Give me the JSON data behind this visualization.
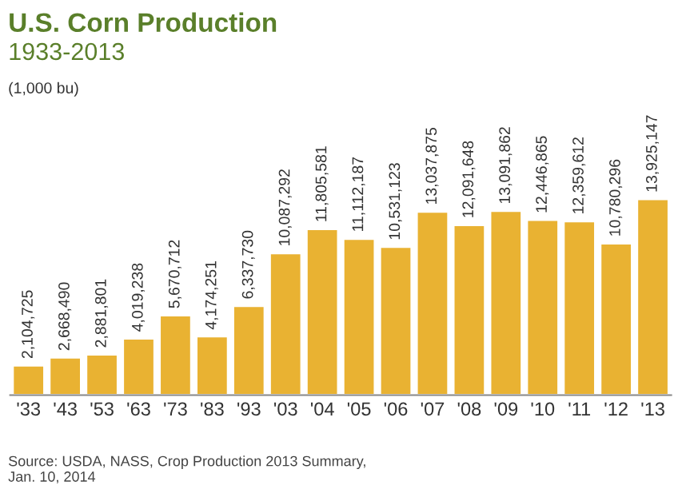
{
  "chart_data": {
    "type": "bar",
    "title": "U.S. Corn Production",
    "subtitle": "1933-2013",
    "categories": [
      "'33",
      "'43",
      "'53",
      "'63",
      "'73",
      "'83",
      "'93",
      "'03",
      "'04",
      "'05",
      "'06",
      "'07",
      "'08",
      "'09",
      "'10",
      "'11",
      "'12",
      "'13"
    ],
    "values": [
      2104725,
      2668490,
      2881801,
      4019238,
      5670712,
      4174251,
      6337730,
      10087292,
      11805581,
      11112187,
      10531123,
      13037875,
      12091648,
      13091862,
      12446865,
      12359612,
      10780296,
      13925147
    ],
    "value_labels": [
      "2,104,725",
      "2,668,490",
      "2,881,801",
      "4,019,238",
      "5,670,712",
      "4,174,251",
      "6,337,730",
      "10,087,292",
      "11,805,581",
      "11,112,187",
      "10,531,123",
      "13,037,875",
      "12,091,648",
      "13,091,862",
      "12,446,865",
      "12,359,612",
      "10,780,296",
      "13,925,147"
    ],
    "color": "#e9b232",
    "annotations": [
      "(1,000 bu)",
      "Source: USDA, NASS, Crop Production 2013 Summary,\nJan. 10, 2014"
    ]
  }
}
